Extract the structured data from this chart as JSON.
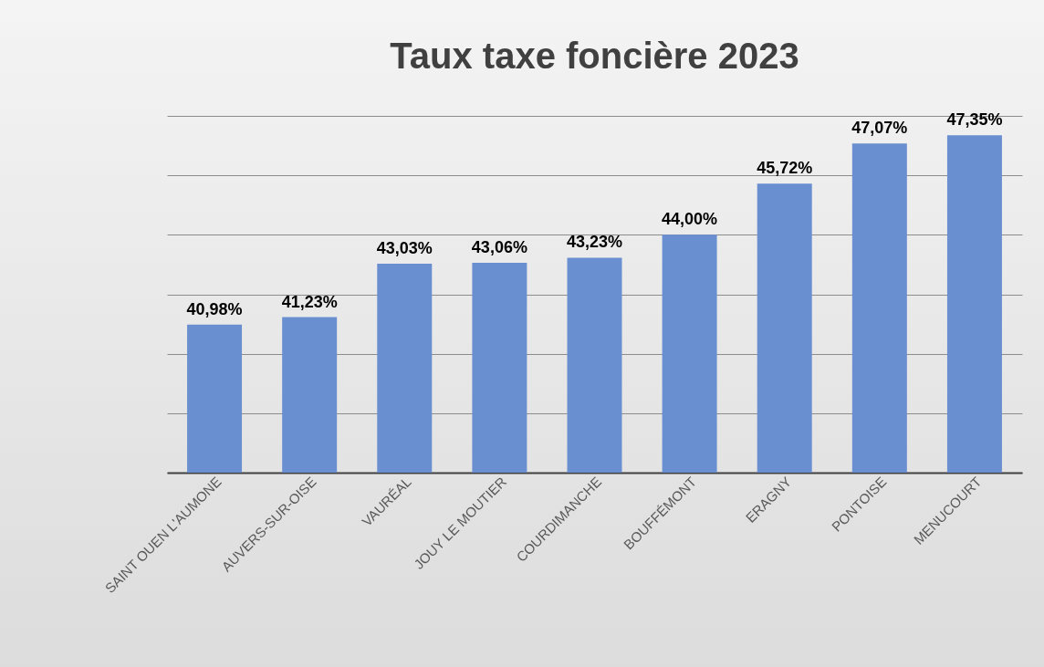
{
  "chart_data": {
    "type": "bar",
    "title": "Taux taxe foncière 2023",
    "categories": [
      "SAINT OUEN L'AUMONE",
      "AUVERS-SUR-OISE",
      "VAURÉAL",
      "JOUY LE MOUTIER",
      "COURDIMANCHE",
      "BOUFFÉMONT",
      "ERAGNY",
      "PONTOISE",
      "MENUCOURT"
    ],
    "values": [
      40.98,
      41.23,
      43.03,
      43.06,
      43.23,
      44.0,
      45.72,
      47.07,
      47.35
    ],
    "value_labels": [
      "40,98%",
      "41,23%",
      "43,03%",
      "43,06%",
      "43,23%",
      "44,00%",
      "45,72%",
      "47,07%",
      "47,35%"
    ],
    "color": "#6a8fd0",
    "ylim": [
      36,
      48
    ],
    "yticks": [
      {
        "value": 36,
        "label": null
      },
      {
        "value": 38,
        "label": null
      },
      {
        "value": 40,
        "label": null
      },
      {
        "value": 42,
        "label": null
      },
      {
        "value": 44,
        "label": null
      },
      {
        "value": 46,
        "label": null
      },
      {
        "value": 48,
        "label": null
      }
    ],
    "grid": "y",
    "tick_labels": "x"
  }
}
